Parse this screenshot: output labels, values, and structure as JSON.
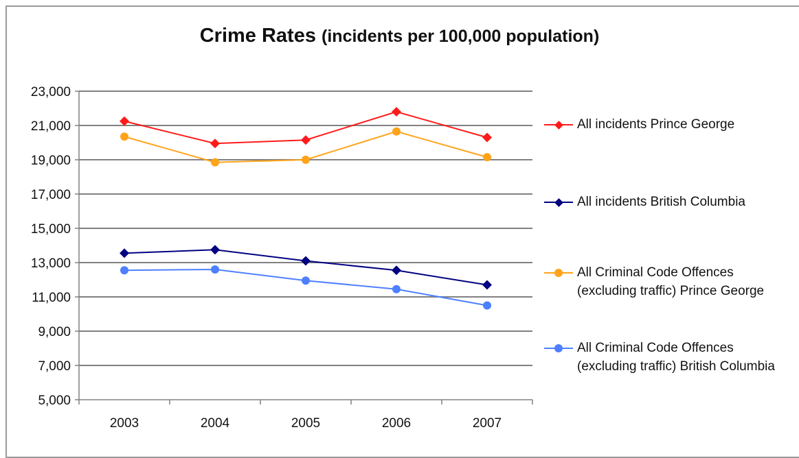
{
  "chart_data": {
    "type": "line",
    "title": "Crime Rates",
    "subtitle": "(incidents per 100,000 population)",
    "categories": [
      "2003",
      "2004",
      "2005",
      "2006",
      "2007"
    ],
    "ylim": [
      5000,
      23000
    ],
    "yticks": [
      5000,
      7000,
      9000,
      11000,
      13000,
      15000,
      17000,
      19000,
      21000,
      23000
    ],
    "ytick_labels": [
      "5,000",
      "7,000",
      "9,000",
      "11,000",
      "13,000",
      "15,000",
      "17,000",
      "19,000",
      "21,000",
      "23,000"
    ],
    "grid": true,
    "legend_position": "right",
    "series": [
      {
        "name": "All incidents Prince George",
        "values": [
          21250,
          19950,
          20150,
          21800,
          20300
        ],
        "color": "#ff1a1a",
        "marker": "diamond"
      },
      {
        "name": "All incidents British Columbia",
        "values": [
          13550,
          13750,
          13100,
          12550,
          11700
        ],
        "color": "#000080",
        "marker": "diamond"
      },
      {
        "name": "All Criminal Code Offences (excluding traffic) Prince George",
        "values": [
          20350,
          18850,
          19000,
          20650,
          19150
        ],
        "color": "#ffa31a",
        "marker": "circle"
      },
      {
        "name": "All Criminal Code Offences (excluding traffic) British Columbia",
        "values": [
          12550,
          12600,
          11950,
          11450,
          10500
        ],
        "color": "#4d7fff",
        "marker": "circle"
      }
    ]
  },
  "legend": [
    {
      "line1": "All incidents Prince George",
      "line2": ""
    },
    {
      "line1": "All incidents British Columbia",
      "line2": ""
    },
    {
      "line1": "All Criminal Code Offences",
      "line2": "(excluding traffic) Prince George"
    },
    {
      "line1": "All Criminal Code Offences",
      "line2": "(excluding traffic) British Columbia"
    }
  ]
}
